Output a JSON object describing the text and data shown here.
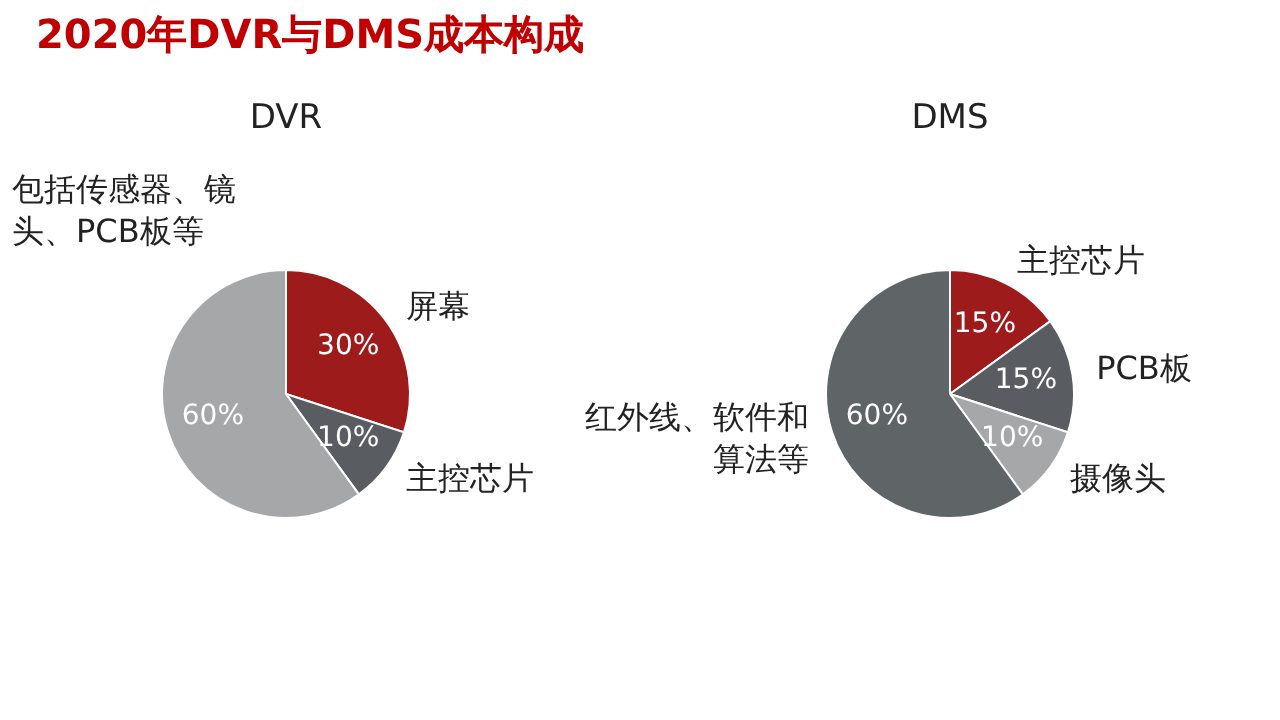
{
  "chart_data": [
    {
      "type": "pie",
      "title": "2020年DVR与DMS成本构成",
      "subtitle": "DVR",
      "categories": [
        "屏幕",
        "主控芯片",
        "包括传感器、镜头、PCB板等"
      ],
      "values": [
        30,
        10,
        60
      ],
      "value_labels": [
        "30%",
        "10%",
        "60%"
      ],
      "colors": [
        "#9e1b1b",
        "#595d61",
        "#a5a7a9"
      ]
    },
    {
      "type": "pie",
      "subtitle": "DMS",
      "categories": [
        "主控芯片",
        "PCB板",
        "摄像头",
        "红外线、软件和算法等"
      ],
      "values": [
        15,
        15,
        10,
        60
      ],
      "value_labels": [
        "15%",
        "15%",
        "10%",
        "60%"
      ],
      "colors": [
        "#9e1b1b",
        "#595d61",
        "#a5a7a9",
        "#5f6466"
      ]
    }
  ]
}
